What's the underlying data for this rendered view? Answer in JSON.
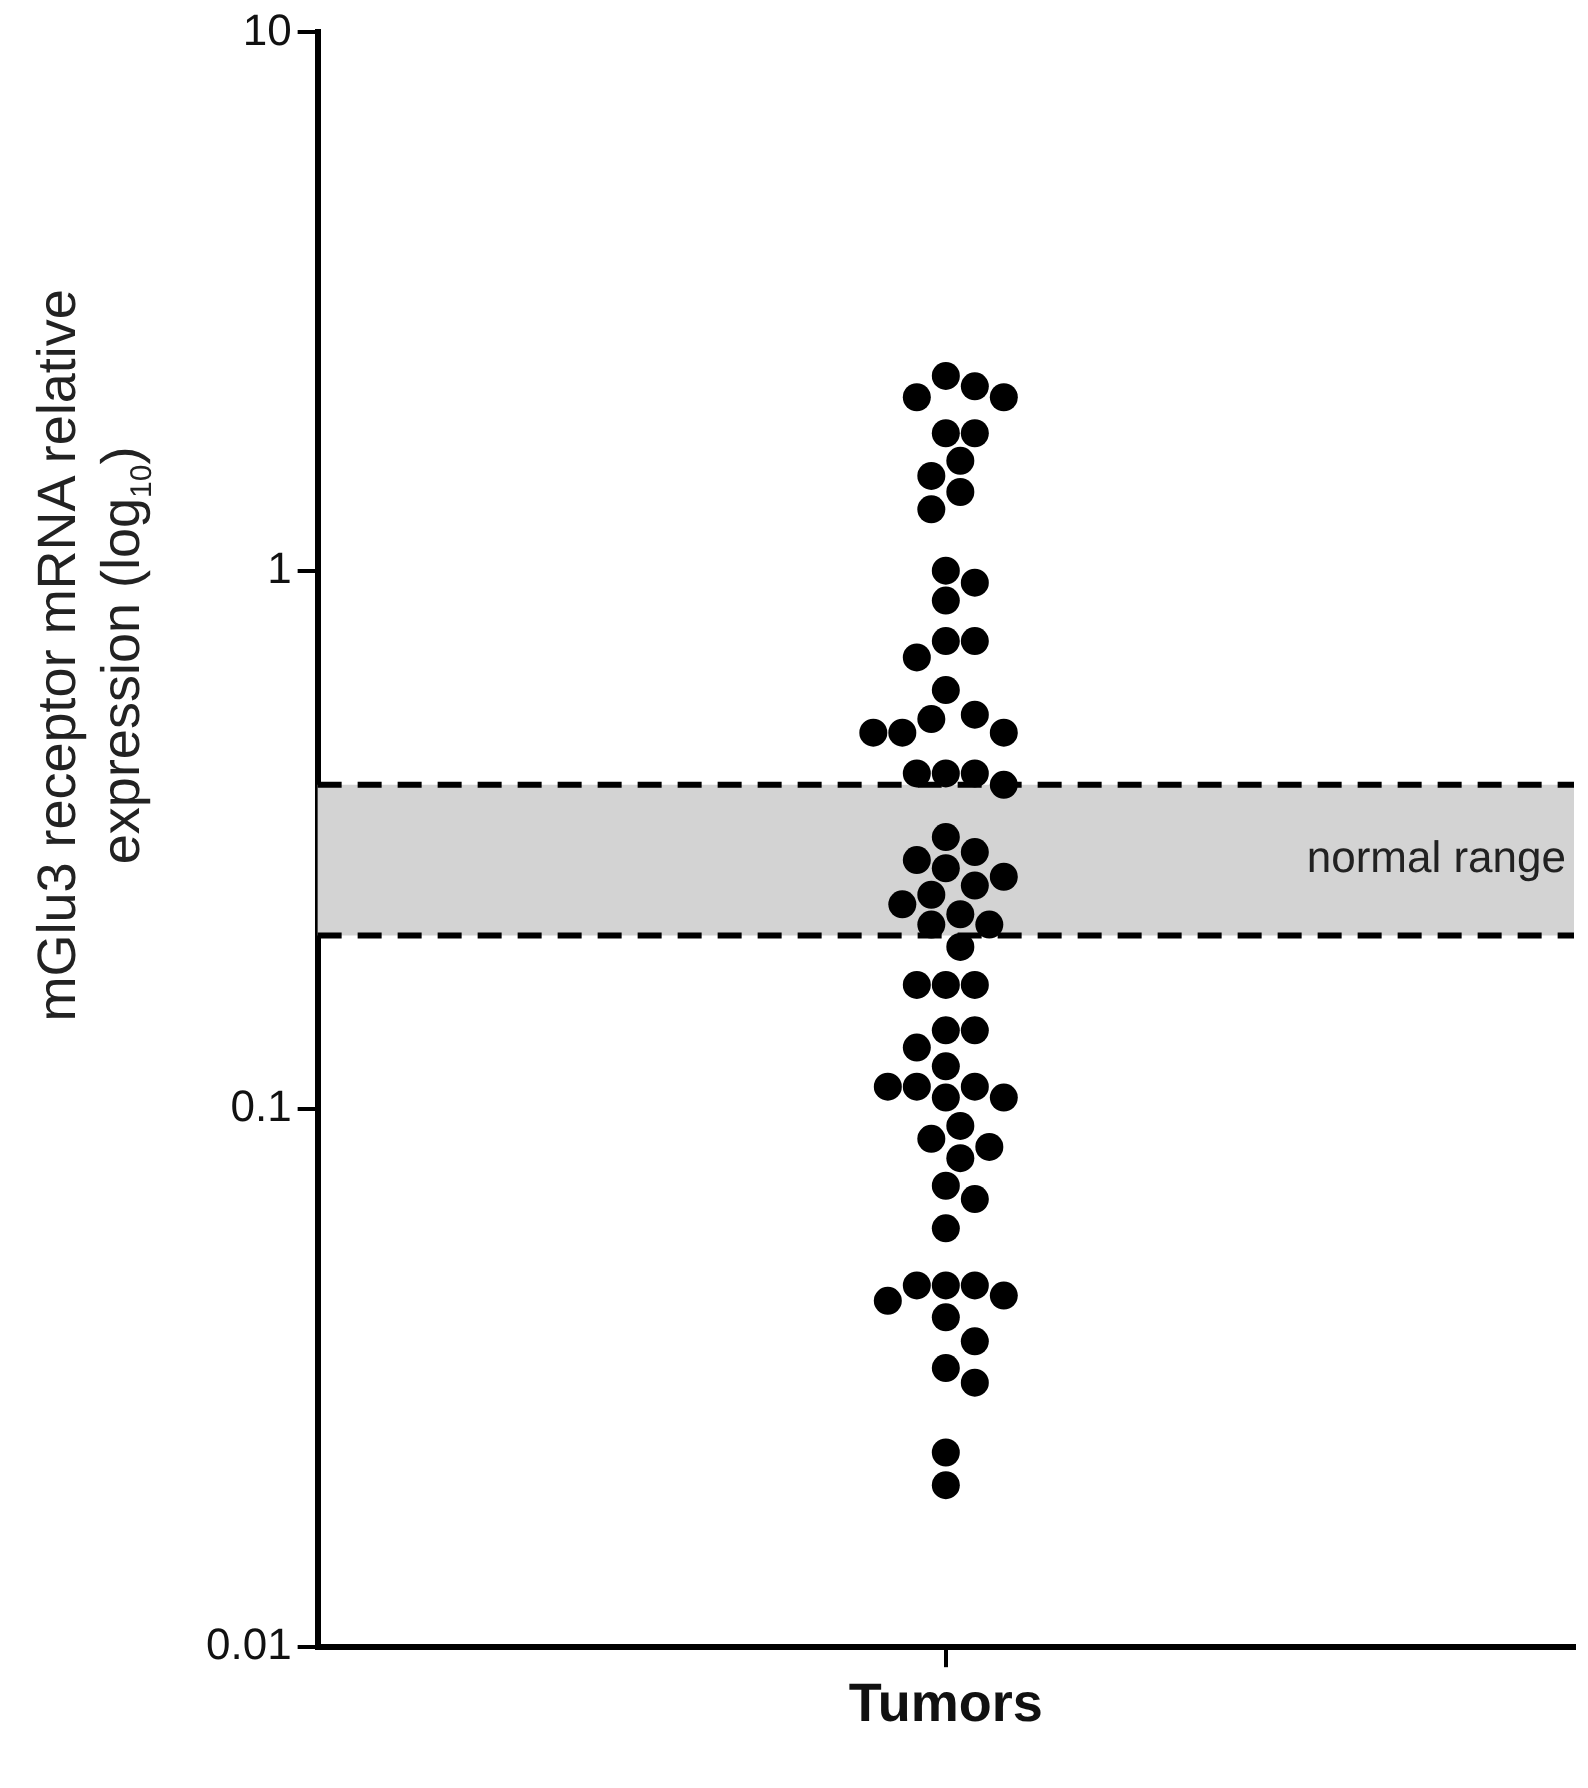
{
  "chart_data": {
    "type": "scatter",
    "ylabel": "mGlu3 receptor mRNA relative expression (log$_{10}$)",
    "categories": [
      "Tumors"
    ],
    "log": "y",
    "ylim": [
      0.01,
      10
    ],
    "yticks": [
      0.01,
      0.1,
      1,
      10
    ],
    "grid": false,
    "legend": false,
    "marker": "circle",
    "bands": [
      {
        "axis": "y",
        "from": 0.21,
        "to": 0.4,
        "label": "normal range",
        "color": "#d3d3d3"
      }
    ],
    "ref_lines": [
      {
        "axis": "y",
        "value": 0.4,
        "color": "#000000",
        "line_style": "dashed"
      },
      {
        "axis": "y",
        "value": 0.21,
        "color": "#000000",
        "line_style": "dashed"
      }
    ],
    "series": [
      {
        "color": "#000000",
        "x": [
          "Tumors",
          "Tumors",
          "Tumors",
          "Tumors",
          "Tumors",
          "Tumors",
          "Tumors",
          "Tumors",
          "Tumors",
          "Tumors",
          "Tumors",
          "Tumors",
          "Tumors",
          "Tumors",
          "Tumors",
          "Tumors",
          "Tumors",
          "Tumors",
          "Tumors",
          "Tumors",
          "Tumors",
          "Tumors",
          "Tumors",
          "Tumors",
          "Tumors",
          "Tumors",
          "Tumors",
          "Tumors",
          "Tumors",
          "Tumors",
          "Tumors",
          "Tumors",
          "Tumors",
          "Tumors",
          "Tumors",
          "Tumors",
          "Tumors",
          "Tumors",
          "Tumors",
          "Tumors",
          "Tumors",
          "Tumors",
          "Tumors",
          "Tumors",
          "Tumors",
          "Tumors",
          "Tumors",
          "Tumors",
          "Tumors",
          "Tumors",
          "Tumors",
          "Tumors",
          "Tumors",
          "Tumors",
          "Tumors",
          "Tumors",
          "Tumors",
          "Tumors",
          "Tumors",
          "Tumors",
          "Tumors",
          "Tumors",
          "Tumors",
          "Tumors",
          "Tumors",
          "Tumors",
          "Tumors",
          "Tumors"
        ],
        "values": [
          2.3,
          2.2,
          2.1,
          2.1,
          1.8,
          1.8,
          1.6,
          1.5,
          1.4,
          1.3,
          1.0,
          0.95,
          0.88,
          0.74,
          0.74,
          0.69,
          0.6,
          0.54,
          0.53,
          0.5,
          0.5,
          0.5,
          0.42,
          0.42,
          0.42,
          0.4,
          0.32,
          0.3,
          0.29,
          0.28,
          0.27,
          0.26,
          0.25,
          0.24,
          0.23,
          0.22,
          0.22,
          0.2,
          0.17,
          0.17,
          0.17,
          0.14,
          0.14,
          0.13,
          0.12,
          0.11,
          0.11,
          0.105,
          0.105,
          0.093,
          0.088,
          0.085,
          0.081,
          0.072,
          0.068,
          0.06,
          0.047,
          0.047,
          0.047,
          0.045,
          0.044,
          0.041,
          0.037,
          0.033,
          0.031,
          0.023,
          0.02,
          0.11
        ]
      }
    ]
  }
}
